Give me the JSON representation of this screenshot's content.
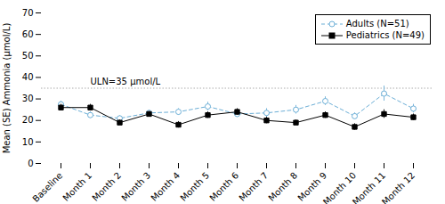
{
  "chart_data": {
    "type": "line",
    "categories": [
      "Baseline",
      "Month 1",
      "Month 2",
      "Month 3",
      "Month 4",
      "Month 5",
      "Month 6",
      "Month 7",
      "Month 8",
      "Month 9",
      "Month 10",
      "Month 11",
      "Month 12"
    ],
    "series": [
      {
        "name": "Adults (N=51)",
        "color": "#6baed6",
        "marker": "circle",
        "line_style": "dashed",
        "values": [
          27.5,
          22.5,
          21.0,
          23.5,
          24.0,
          26.5,
          23.0,
          23.5,
          25.0,
          29.0,
          22.0,
          32.5,
          25.5
        ],
        "se": [
          1.5,
          1.5,
          1.2,
          1.2,
          1.5,
          2.0,
          1.5,
          2.0,
          2.0,
          2.0,
          1.5,
          3.5,
          2.0
        ]
      },
      {
        "name": "Pediatrics (N=49)",
        "color": "#000000",
        "marker": "square",
        "line_style": "solid",
        "values": [
          26.0,
          26.0,
          19.0,
          23.0,
          18.0,
          22.5,
          24.0,
          20.0,
          19.0,
          22.5,
          17.0,
          23.0,
          21.5
        ],
        "se": [
          1.5,
          1.5,
          1.2,
          1.2,
          1.5,
          1.5,
          1.5,
          1.5,
          1.2,
          1.5,
          1.5,
          2.0,
          1.5
        ]
      }
    ],
    "annotations": [
      {
        "text": "ULN=35 μmol/L",
        "y": 35,
        "color": "#aaaaaa",
        "line_style": "dotted"
      }
    ],
    "ylabel": "Mean (SE) Ammonia (μmol/L)",
    "ylim": [
      0,
      70
    ],
    "yticks": [
      0,
      10,
      20,
      30,
      40,
      50,
      60,
      70
    ],
    "grid": false,
    "legend": "upper right"
  }
}
